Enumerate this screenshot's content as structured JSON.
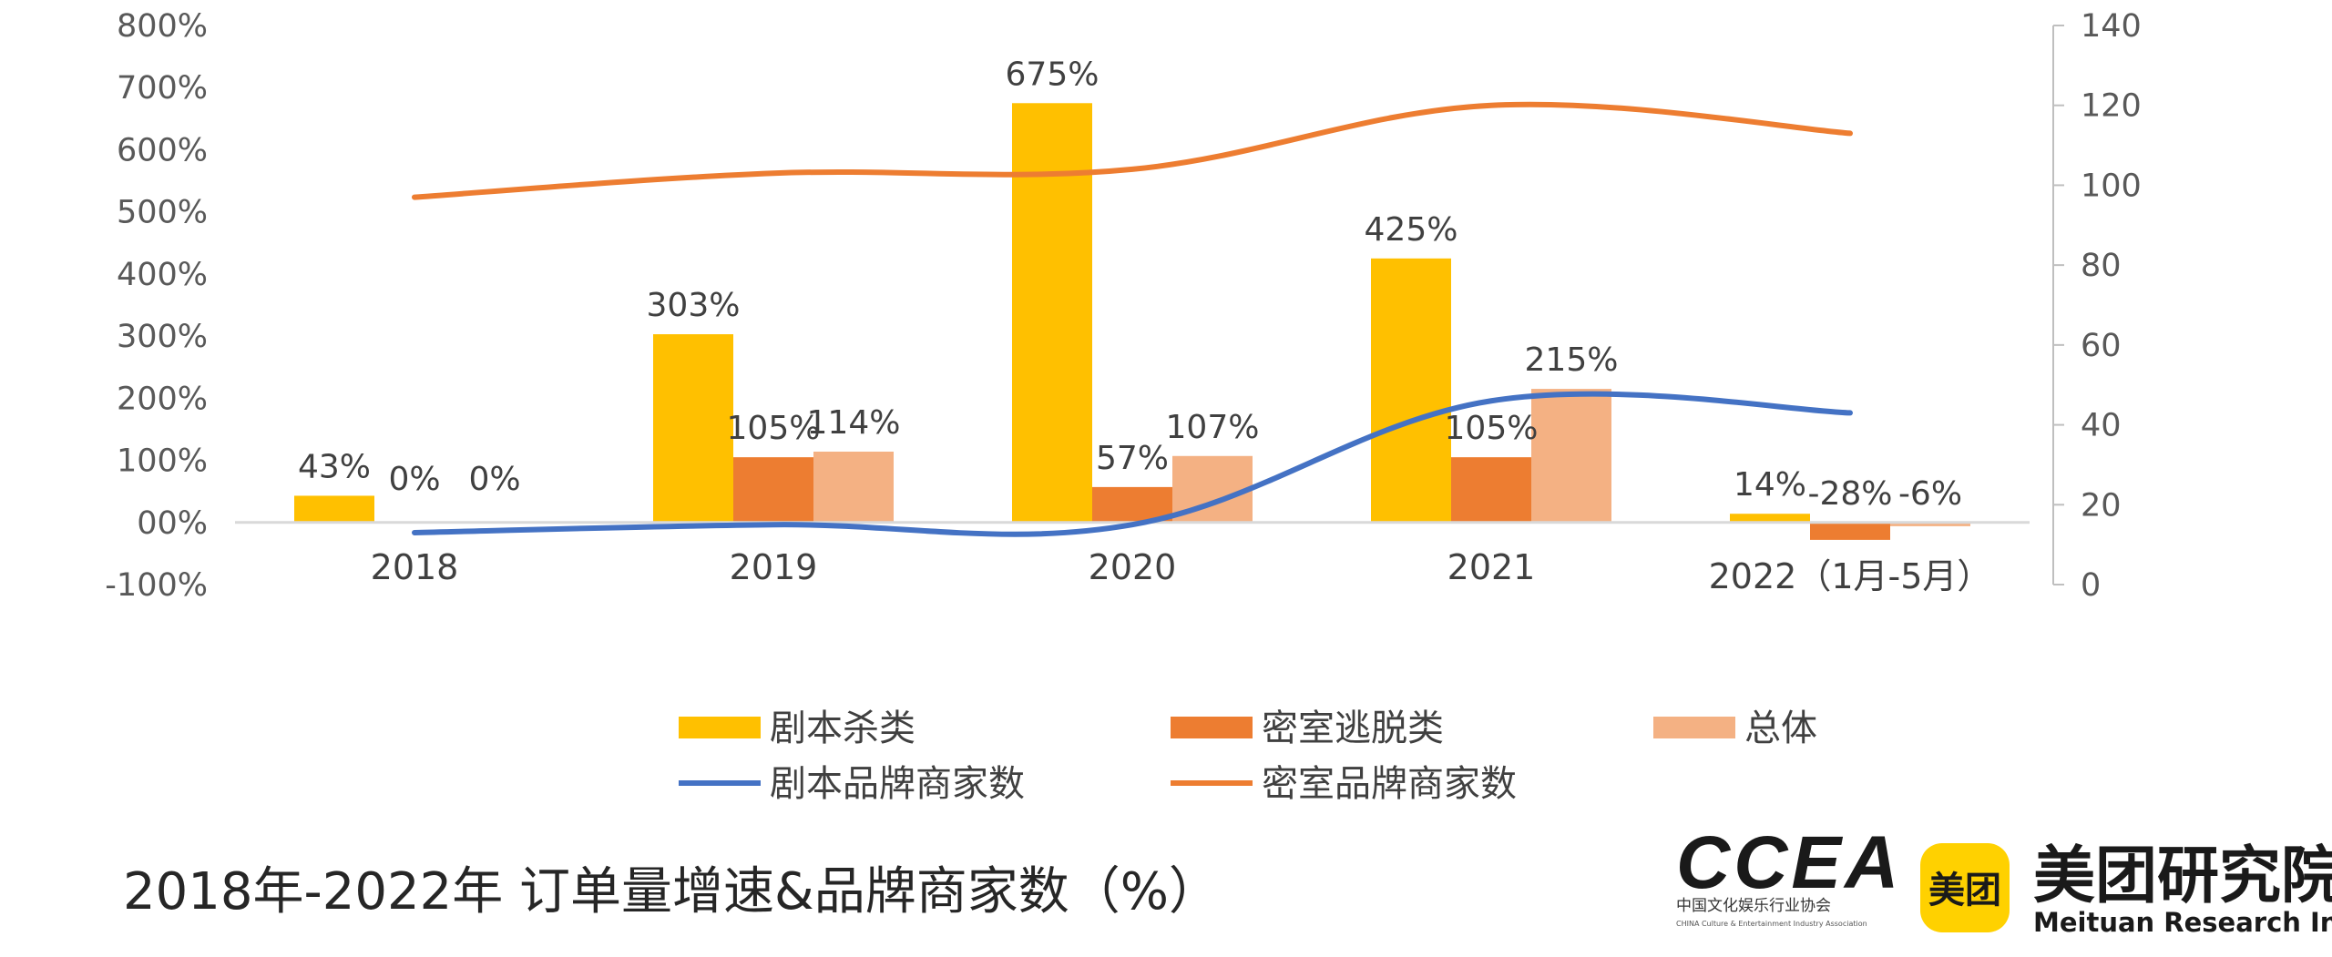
{
  "chart_data": {
    "type": "bar",
    "title": "2018年-2022年 订单量增速&品牌商家数（%）",
    "categories": [
      "2018",
      "2019",
      "2020",
      "2021",
      "2022（1月-5月）"
    ],
    "series": [
      {
        "name": "剧本杀类",
        "type": "bar",
        "axis": "left",
        "color": "#FFC000",
        "values": [
          43,
          303,
          675,
          425,
          14
        ],
        "labels": [
          "43%",
          "303%",
          "675%",
          "425%",
          "14%"
        ]
      },
      {
        "name": "密室逃脱类",
        "type": "bar",
        "axis": "left",
        "color": "#ED7D31",
        "values": [
          0,
          105,
          57,
          105,
          -28
        ],
        "labels": [
          "0%",
          "105%",
          "57%",
          "105%",
          "-28%"
        ]
      },
      {
        "name": "总体",
        "type": "bar",
        "axis": "left",
        "color": "#F4B183",
        "values": [
          0,
          114,
          107,
          215,
          -6
        ],
        "labels": [
          "0%",
          "114%",
          "107%",
          "215%",
          "-6%"
        ]
      },
      {
        "name": "剧本品牌商家数",
        "type": "line",
        "axis": "right",
        "color": "#4472C4",
        "values": [
          13,
          15,
          15,
          46,
          43
        ]
      },
      {
        "name": "密室品牌商家数",
        "type": "line",
        "axis": "right",
        "color": "#ED7D31",
        "values": [
          97,
          103,
          104,
          120,
          113
        ]
      }
    ],
    "y_left": {
      "min": -100,
      "max": 800,
      "step": 100,
      "tick_labels": [
        "-100%",
        "00%",
        "100%",
        "200%",
        "300%",
        "400%",
        "500%",
        "600%",
        "700%",
        "800%"
      ]
    },
    "y_right": {
      "min": 0,
      "max": 140,
      "step": 20,
      "tick_labels": [
        "0",
        "20",
        "40",
        "60",
        "80",
        "100",
        "120",
        "140"
      ]
    },
    "legend_position": "bottom-center",
    "grid": false
  },
  "logos": {
    "ccea": {
      "mark": "CCEA",
      "cn": "中国文化娱乐行业协会",
      "en": "CHINA Culture & Entertainment Industry Association"
    },
    "meituan": {
      "badge": "美团",
      "cn": "美团研究院",
      "en": "Meituan Research Institute"
    }
  }
}
